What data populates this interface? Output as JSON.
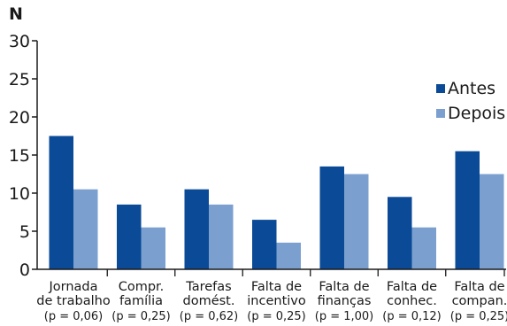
{
  "chart_data": {
    "type": "bar",
    "ylabel": "N",
    "ylim": [
      0,
      30
    ],
    "yticks": [
      0,
      5,
      10,
      15,
      20,
      25,
      30
    ],
    "categories": [
      {
        "line1": "Jornada",
        "line2": "de trabalho",
        "line3": "(p = 0,06)"
      },
      {
        "line1": "Compr.",
        "line2": "família",
        "line3": "(p = 0,25)"
      },
      {
        "line1": "Tarefas",
        "line2": "domést.",
        "line3": "(p = 0,62)"
      },
      {
        "line1": "Falta de",
        "line2": "incentivo",
        "line3": "(p = 0,25)"
      },
      {
        "line1": "Falta de",
        "line2": "finanças",
        "line3": "(p = 1,00)"
      },
      {
        "line1": "Falta de",
        "line2": "conhec.",
        "line3": "(p = 0,12)"
      },
      {
        "line1": "Falta de",
        "line2": "compan.",
        "line3": "(p = 0,25)"
      }
    ],
    "series": [
      {
        "name": "Antes",
        "color": "#0a4a96",
        "values": [
          17.5,
          8.5,
          10.5,
          6.5,
          13.5,
          9.5,
          15.5
        ]
      },
      {
        "name": "Depois",
        "color": "#7ba0d0",
        "values": [
          10.5,
          5.5,
          8.5,
          3.5,
          12.5,
          5.5,
          12.5
        ]
      }
    ],
    "legend_position": "right",
    "grid": false
  }
}
